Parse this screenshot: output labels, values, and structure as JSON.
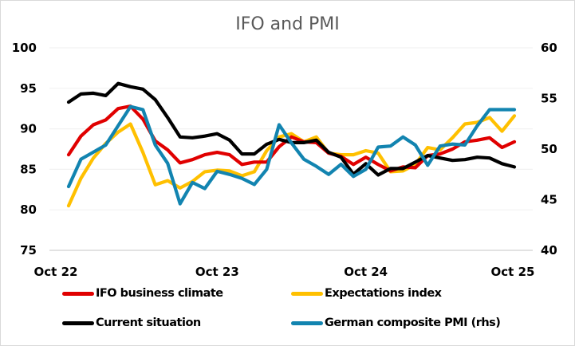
{
  "chart_data": {
    "type": "line",
    "title": "IFO and PMI",
    "xlabel": "",
    "ylabel": "",
    "ylabel_right": "",
    "x_tick_labels": [
      "Oct 22",
      "Oct 23",
      "Oct 24",
      "Oct 25"
    ],
    "x_tick_indices": [
      0,
      12,
      24,
      36
    ],
    "x": [
      "Oct 22",
      "Nov 22",
      "Dec 22",
      "Jan 23",
      "Feb 23",
      "Mar 23",
      "Apr 23",
      "May 23",
      "Jun 23",
      "Jul 23",
      "Aug 23",
      "Sep 23",
      "Oct 23",
      "Nov 23",
      "Dec 23",
      "Jan 24",
      "Feb 24",
      "Mar 24",
      "Apr 24",
      "May 24",
      "Jun 24",
      "Jul 24",
      "Aug 24",
      "Sep 24",
      "Oct 24",
      "Nov 24",
      "Dec 24",
      "Jan 25",
      "Feb 25",
      "Mar 25",
      "Apr 25",
      "May 25",
      "Jun 25",
      "Jul 25",
      "Aug 25",
      "Sep 25",
      "Oct 25"
    ],
    "ylim": [
      75,
      100
    ],
    "yticks": [
      75,
      80,
      85,
      90,
      95,
      100
    ],
    "ylim_right": [
      40,
      60
    ],
    "yticks_right": [
      40,
      45,
      50,
      55,
      60
    ],
    "grid": true,
    "legend_position": "bottom",
    "series": [
      {
        "name": "IFO business climate",
        "axis": "left",
        "color": "#E00000",
        "values": [
          86.8,
          89.1,
          90.5,
          91.1,
          92.5,
          92.8,
          91.2,
          88.5,
          87.4,
          85.8,
          86.2,
          86.8,
          87.1,
          86.8,
          85.6,
          85.9,
          85.9,
          87.8,
          89.0,
          88.4,
          88.3,
          87.0,
          86.6,
          85.6,
          86.5,
          85.6,
          84.8,
          85.3,
          85.2,
          86.7,
          86.9,
          87.5,
          88.4,
          88.6,
          88.9,
          87.7,
          88.4
        ]
      },
      {
        "name": "Expectations index",
        "axis": "left",
        "color": "#FFC000",
        "values": [
          80.5,
          83.9,
          86.4,
          88.2,
          89.6,
          90.6,
          87.1,
          83.1,
          83.6,
          82.7,
          83.5,
          84.7,
          84.9,
          84.8,
          84.2,
          84.7,
          87.3,
          89.0,
          89.4,
          88.4,
          89.0,
          87.0,
          86.8,
          86.8,
          87.3,
          87.0,
          84.7,
          84.8,
          85.6,
          87.7,
          87.4,
          88.9,
          90.6,
          90.8,
          91.4,
          89.7,
          91.6
        ]
      },
      {
        "name": "Current situation",
        "axis": "left",
        "color": "#000000",
        "values": [
          93.3,
          94.3,
          94.4,
          94.1,
          95.6,
          95.2,
          94.9,
          93.6,
          91.4,
          89.0,
          88.9,
          89.1,
          89.4,
          88.6,
          86.9,
          86.9,
          88.1,
          88.7,
          88.3,
          88.3,
          88.6,
          87.1,
          86.5,
          84.4,
          85.7,
          84.3,
          85.1,
          85.1,
          85.9,
          86.7,
          86.4,
          86.1,
          86.2,
          86.5,
          86.4,
          85.7,
          85.3
        ]
      },
      {
        "name": "German composite PMI (rhs)",
        "axis": "right",
        "color": "#1284B0",
        "values": [
          46.3,
          49.0,
          49.7,
          50.4,
          52.3,
          54.2,
          53.9,
          50.4,
          48.6,
          44.6,
          46.7,
          46.1,
          47.8,
          47.5,
          47.1,
          46.5,
          48.0,
          52.4,
          50.6,
          49.0,
          48.3,
          47.5,
          48.5,
          47.3,
          48.0,
          50.2,
          50.3,
          51.2,
          50.4,
          48.4,
          50.3,
          50.5,
          50.4,
          52.3,
          53.9,
          53.9,
          53.9
        ]
      }
    ]
  }
}
